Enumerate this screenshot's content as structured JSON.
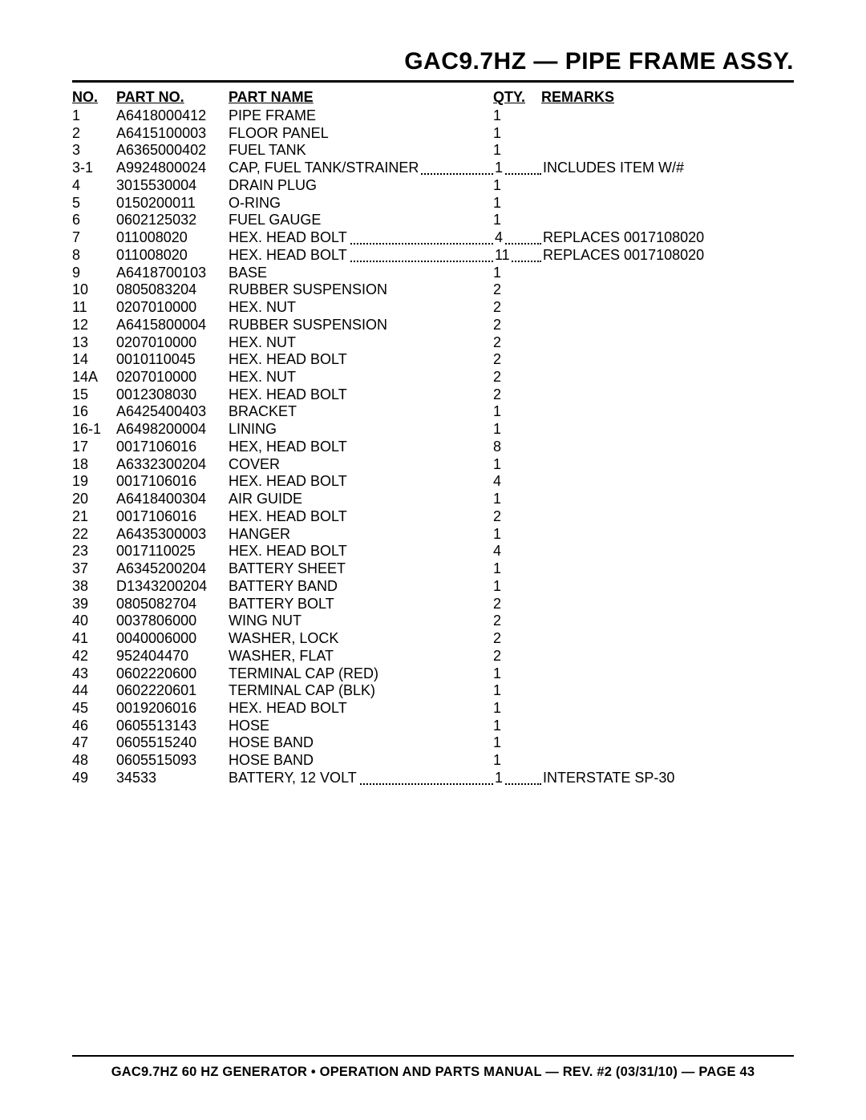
{
  "title": "GAC9.7HZ — PIPE FRAME ASSY.",
  "headers": {
    "no": "NO.",
    "partno": "PART NO.",
    "partname": "PART NAME",
    "qty": "QTY.",
    "remarks": "REMARKS"
  },
  "rows": [
    {
      "no": "1",
      "partno": "A6418000412",
      "name": "PIPE FRAME",
      "qty": "1",
      "remarks": "",
      "leader": false
    },
    {
      "no": "2",
      "partno": "A6415100003",
      "name": "FLOOR PANEL",
      "qty": "1",
      "remarks": "",
      "leader": false
    },
    {
      "no": "3",
      "partno": "A6365000402",
      "name": "FUEL TANK",
      "qty": "1",
      "remarks": "",
      "leader": false
    },
    {
      "no": "3-1",
      "partno": "A9924800024",
      "name": "CAP, FUEL TANK/STRAINER",
      "qty": "1",
      "remarks": "INCLUDES ITEM W/#",
      "leader": true
    },
    {
      "no": "4",
      "partno": "3015530004",
      "name": "DRAIN PLUG",
      "qty": "1",
      "remarks": "",
      "leader": false
    },
    {
      "no": "5",
      "partno": "0150200011",
      "name": "O-RING",
      "qty": "1",
      "remarks": "",
      "leader": false
    },
    {
      "no": "6",
      "partno": "0602125032",
      "name": "FUEL GAUGE",
      "qty": "1",
      "remarks": "",
      "leader": false
    },
    {
      "no": "7",
      "partno": "011008020",
      "name": "HEX. HEAD BOLT",
      "qty": "4",
      "remarks": "REPLACES 0017108020",
      "leader": true
    },
    {
      "no": "8",
      "partno": "011008020",
      "name": "HEX. HEAD BOLT",
      "qty": "11",
      "remarks": "REPLACES 0017108020",
      "leader": true
    },
    {
      "no": "9",
      "partno": "A6418700103",
      "name": "BASE",
      "qty": "1",
      "remarks": "",
      "leader": false
    },
    {
      "no": "10",
      "partno": "0805083204",
      "name": "RUBBER SUSPENSION",
      "qty": "2",
      "remarks": "",
      "leader": false
    },
    {
      "no": "11",
      "partno": "0207010000",
      "name": "HEX. NUT",
      "qty": "2",
      "remarks": "",
      "leader": false
    },
    {
      "no": "12",
      "partno": "A6415800004",
      "name": "RUBBER SUSPENSION",
      "qty": "2",
      "remarks": "",
      "leader": false
    },
    {
      "no": "13",
      "partno": "0207010000",
      "name": "HEX. NUT",
      "qty": "2",
      "remarks": "",
      "leader": false
    },
    {
      "no": "14",
      "partno": "0010110045",
      "name": "HEX. HEAD BOLT",
      "qty": "2",
      "remarks": "",
      "leader": false
    },
    {
      "no": "14A",
      "partno": "0207010000",
      "name": "HEX. NUT",
      "qty": "2",
      "remarks": "",
      "leader": false
    },
    {
      "no": "15",
      "partno": "0012308030",
      "name": "HEX. HEAD BOLT",
      "qty": "2",
      "remarks": "",
      "leader": false
    },
    {
      "no": "16",
      "partno": "A6425400403",
      "name": "BRACKET",
      "qty": "1",
      "remarks": "",
      "leader": false
    },
    {
      "no": "16-1",
      "partno": "A6498200004",
      "name": "LINING",
      "qty": "1",
      "remarks": "",
      "leader": false
    },
    {
      "no": "17",
      "partno": "0017106016",
      "name": "HEX, HEAD BOLT",
      "qty": "8",
      "remarks": "",
      "leader": false
    },
    {
      "no": "18",
      "partno": "A6332300204",
      "name": "COVER",
      "qty": "1",
      "remarks": "",
      "leader": false
    },
    {
      "no": "19",
      "partno": "0017106016",
      "name": "HEX. HEAD BOLT",
      "qty": "4",
      "remarks": "",
      "leader": false
    },
    {
      "no": "20",
      "partno": "A6418400304",
      "name": "AIR GUIDE",
      "qty": "1",
      "remarks": "",
      "leader": false
    },
    {
      "no": "21",
      "partno": "0017106016",
      "name": "HEX. HEAD BOLT",
      "qty": "2",
      "remarks": "",
      "leader": false
    },
    {
      "no": "22",
      "partno": "A6435300003",
      "name": "HANGER",
      "qty": "1",
      "remarks": "",
      "leader": false
    },
    {
      "no": "23",
      "partno": "0017110025",
      "name": "HEX. HEAD BOLT",
      "qty": "4",
      "remarks": "",
      "leader": false
    },
    {
      "no": "37",
      "partno": "A6345200204",
      "name": "BATTERY SHEET",
      "qty": "1",
      "remarks": "",
      "leader": false
    },
    {
      "no": "38",
      "partno": "D1343200204",
      "name": "BATTERY BAND",
      "qty": "1",
      "remarks": "",
      "leader": false
    },
    {
      "no": "39",
      "partno": "0805082704",
      "name": "BATTERY BOLT",
      "qty": "2",
      "remarks": "",
      "leader": false
    },
    {
      "no": "40",
      "partno": "0037806000",
      "name": "WING NUT",
      "qty": "2",
      "remarks": "",
      "leader": false
    },
    {
      "no": "41",
      "partno": "0040006000",
      "name": "WASHER, LOCK",
      "qty": "2",
      "remarks": "",
      "leader": false
    },
    {
      "no": "42",
      "partno": "952404470",
      "name": "WASHER, FLAT",
      "qty": "2",
      "remarks": "",
      "leader": false
    },
    {
      "no": "43",
      "partno": "0602220600",
      "name": "TERMINAL CAP (RED)",
      "qty": "1",
      "remarks": "",
      "leader": false
    },
    {
      "no": "44",
      "partno": "0602220601",
      "name": "TERMINAL CAP (BLK)",
      "qty": "1",
      "remarks": "",
      "leader": false
    },
    {
      "no": "45",
      "partno": "0019206016",
      "name": "HEX. HEAD BOLT",
      "qty": "1",
      "remarks": "",
      "leader": false
    },
    {
      "no": "46",
      "partno": "0605513143",
      "name": "HOSE",
      "qty": "1",
      "remarks": "",
      "leader": false
    },
    {
      "no": "47",
      "partno": "0605515240",
      "name": "HOSE BAND",
      "qty": "1",
      "remarks": "",
      "leader": false
    },
    {
      "no": "48",
      "partno": "0605515093",
      "name": "HOSE BAND",
      "qty": "1",
      "remarks": "",
      "leader": false
    },
    {
      "no": "49",
      "partno": "34533",
      "name": "BATTERY, 12 VOLT",
      "qty": "1",
      "remarks": "INTERSTATE SP-30",
      "leader": true
    }
  ],
  "footer": "GAC9.7HZ 60 HZ GENERATOR • OPERATION AND PARTS MANUAL — REV. #2 (03/31/10) — PAGE 43"
}
